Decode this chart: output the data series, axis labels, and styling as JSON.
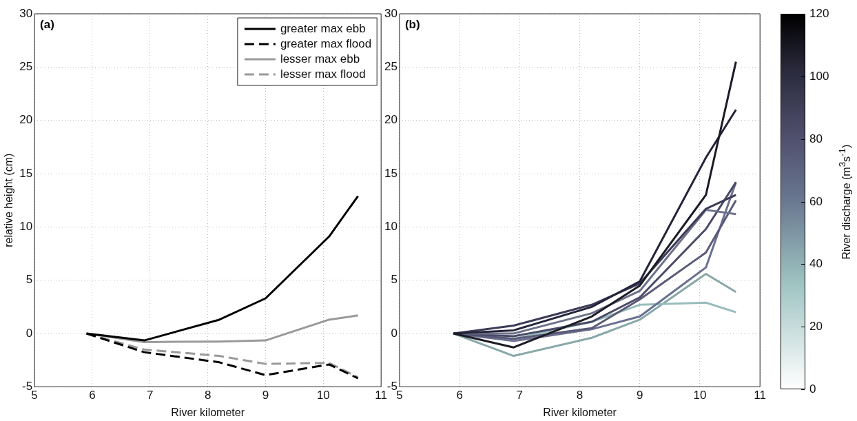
{
  "chart_data": [
    {
      "type": "line",
      "title": null,
      "annotations": [
        "(a)"
      ],
      "xlabel": "River kilometer",
      "ylabel": "relative height (cm)",
      "x": [
        5.9,
        6.9,
        8.2,
        9.0,
        10.1,
        10.6
      ],
      "xlim": [
        5,
        11
      ],
      "xticks": [
        5,
        6,
        7,
        8,
        9,
        10,
        11
      ],
      "ylim": [
        -5,
        30
      ],
      "yticks": [
        -5,
        0,
        5,
        10,
        15,
        20,
        25,
        30
      ],
      "grid": true,
      "legend": "top right",
      "series": [
        {
          "name": "greater max ebb",
          "color": "#000000",
          "line_style": "solid",
          "values": [
            0,
            -0.65,
            1.3,
            3.3,
            9.1,
            12.9
          ]
        },
        {
          "name": "greater max flood",
          "color": "#000000",
          "line_style": "dashed",
          "values": [
            0,
            -1.75,
            -2.7,
            -3.9,
            -2.9,
            -4.2
          ]
        },
        {
          "name": "lesser max ebb",
          "color": "#999999",
          "line_style": "solid",
          "values": [
            0,
            -0.8,
            -0.75,
            -0.65,
            1.3,
            1.7
          ]
        },
        {
          "name": "lesser max flood",
          "color": "#999999",
          "line_style": "dashed",
          "values": [
            0,
            -1.5,
            -2.1,
            -2.85,
            -2.75,
            -4.1
          ]
        }
      ]
    },
    {
      "type": "line",
      "annotations": [
        "(b)"
      ],
      "xlabel": "River kilometer",
      "x": [
        5.9,
        6.9,
        8.2,
        9.0,
        10.1,
        10.6
      ],
      "xlim": [
        5,
        11
      ],
      "xticks": [
        5,
        6,
        7,
        8,
        9,
        10,
        11
      ],
      "ylim": [
        -5,
        30
      ],
      "yticks": [
        -5,
        0,
        5,
        10,
        15,
        20,
        25,
        30
      ],
      "grid": true,
      "legend": false,
      "clabel": "River discharge (m$^{3}$s$^{-1}$)",
      "clim": [
        0,
        120
      ],
      "cticks": [
        0,
        20,
        40,
        60,
        80,
        100,
        120
      ],
      "series": [
        {
          "color": "#1c1c26",
          "values": [
            0,
            -1.3,
            1.6,
            4.5,
            13.0,
            25.5
          ]
        },
        {
          "color": "#24243a",
          "values": [
            0,
            0.3,
            2.5,
            4.9,
            16.5,
            21.0
          ]
        },
        {
          "color": "#3c3c58",
          "values": [
            0,
            0.75,
            2.7,
            4.7,
            11.7,
            13.0
          ]
        },
        {
          "color": "#6c7288",
          "values": [
            0,
            0,
            1.9,
            4.0,
            11.6,
            11.2
          ]
        },
        {
          "color": "#4a4a68",
          "values": [
            0,
            -0.25,
            1.1,
            3.4,
            9.8,
            14.2
          ]
        },
        {
          "color": "#5a5a78",
          "values": [
            0,
            -0.5,
            0.5,
            3.2,
            7.6,
            12.5
          ]
        },
        {
          "color": "#6a7090",
          "values": [
            0,
            -0.7,
            0.4,
            1.6,
            6.2,
            14.2
          ]
        },
        {
          "color": "#98bcbc",
          "values": [
            0,
            -0.5,
            1.1,
            2.7,
            2.9,
            2.0
          ]
        },
        {
          "color": "#88a8a8",
          "values": [
            0,
            -2.1,
            -0.4,
            1.3,
            5.6,
            3.9
          ]
        }
      ]
    }
  ]
}
